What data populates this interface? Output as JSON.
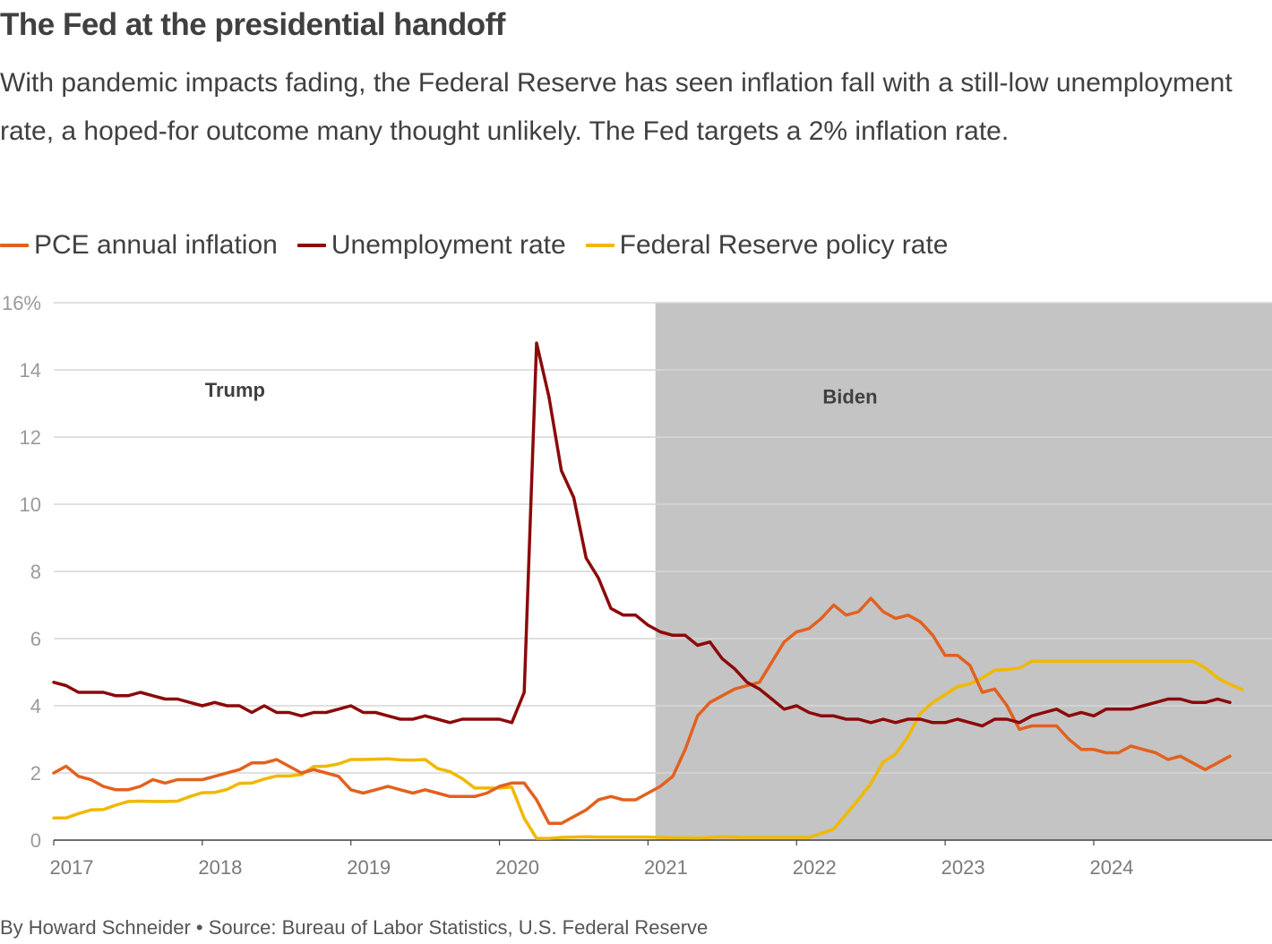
{
  "title": "The Fed at the presidential handoff",
  "subtitle": "With pandemic impacts fading, the Federal Reserve has seen inflation fall with a still-low unemployment rate, a hoped-for outcome many thought unlikely. The Fed targets a 2% inflation rate.",
  "footer": "By Howard Schneider • Source: Bureau of Labor Statistics, U.S. Federal Reserve",
  "legend": [
    {
      "label": "PCE annual inflation",
      "color": "#e2611f"
    },
    {
      "label": "Unemployment rate",
      "color": "#8b0a0a"
    },
    {
      "label": "Federal Reserve policy rate",
      "color": "#f0b800"
    }
  ],
  "chart_data": {
    "type": "line",
    "x_start": "2017-01",
    "x_unit": "month",
    "xlim": [
      2017.0,
      2025.2
    ],
    "ylim": [
      0,
      16
    ],
    "y_ticks": [
      0,
      2,
      4,
      6,
      8,
      10,
      12,
      14,
      16
    ],
    "y_tick_labels": [
      "0",
      "2",
      "4",
      "6",
      "8",
      "10",
      "12",
      "14",
      "16%"
    ],
    "x_ticks": [
      2017,
      2018,
      2019,
      2020,
      2021,
      2022,
      2023,
      2024
    ],
    "x_tick_labels": [
      "2017",
      "2018",
      "2019",
      "2020",
      "2021",
      "2022",
      "2023",
      "2024"
    ],
    "shaded_region": {
      "start": 2021.05,
      "end": 2025.2,
      "color": "#c4c4c4",
      "label": "Biden"
    },
    "annotations": [
      {
        "text": "Trump",
        "x": 2018.22,
        "y": 13.2
      },
      {
        "text": "Biden",
        "x": 2022.36,
        "y": 13.0
      }
    ],
    "series": [
      {
        "name": "PCE annual inflation",
        "color": "#e2611f",
        "values": [
          2.0,
          2.2,
          1.9,
          1.8,
          1.6,
          1.5,
          1.5,
          1.6,
          1.8,
          1.7,
          1.8,
          1.8,
          1.8,
          1.9,
          2.0,
          2.1,
          2.3,
          2.3,
          2.4,
          2.2,
          2.0,
          2.1,
          2.0,
          1.9,
          1.5,
          1.4,
          1.5,
          1.6,
          1.5,
          1.4,
          1.5,
          1.4,
          1.3,
          1.3,
          1.3,
          1.4,
          1.6,
          1.7,
          1.7,
          1.2,
          0.5,
          0.5,
          0.7,
          0.9,
          1.2,
          1.3,
          1.2,
          1.2,
          1.4,
          1.6,
          1.9,
          2.7,
          3.7,
          4.1,
          4.3,
          4.5,
          4.6,
          4.7,
          5.3,
          5.9,
          6.2,
          6.3,
          6.6,
          7.0,
          6.7,
          6.8,
          7.2,
          6.8,
          6.6,
          6.7,
          6.5,
          6.1,
          5.5,
          5.5,
          5.2,
          4.4,
          4.5,
          4.0,
          3.3,
          3.4,
          3.4,
          3.4,
          3.0,
          2.7,
          2.7,
          2.6,
          2.6,
          2.8,
          2.7,
          2.6,
          2.4,
          2.5,
          2.3,
          2.1,
          2.3,
          2.5
        ]
      },
      {
        "name": "Unemployment rate",
        "color": "#8b0a0a",
        "values": [
          4.7,
          4.6,
          4.4,
          4.4,
          4.4,
          4.3,
          4.3,
          4.4,
          4.3,
          4.2,
          4.2,
          4.1,
          4.0,
          4.1,
          4.0,
          4.0,
          3.8,
          4.0,
          3.8,
          3.8,
          3.7,
          3.8,
          3.8,
          3.9,
          4.0,
          3.8,
          3.8,
          3.7,
          3.6,
          3.6,
          3.7,
          3.6,
          3.5,
          3.6,
          3.6,
          3.6,
          3.6,
          3.5,
          4.4,
          14.8,
          13.2,
          11.0,
          10.2,
          8.4,
          7.8,
          6.9,
          6.7,
          6.7,
          6.4,
          6.2,
          6.1,
          6.1,
          5.8,
          5.9,
          5.4,
          5.1,
          4.7,
          4.5,
          4.2,
          3.9,
          4.0,
          3.8,
          3.7,
          3.7,
          3.6,
          3.6,
          3.5,
          3.6,
          3.5,
          3.6,
          3.6,
          3.5,
          3.5,
          3.6,
          3.5,
          3.4,
          3.6,
          3.6,
          3.5,
          3.7,
          3.8,
          3.9,
          3.7,
          3.8,
          3.7,
          3.9,
          3.9,
          3.9,
          4.0,
          4.1,
          4.2,
          4.2,
          4.1,
          4.1,
          4.2,
          4.1
        ]
      },
      {
        "name": "Federal Reserve policy rate",
        "color": "#f0b800",
        "values": [
          0.66,
          0.66,
          0.79,
          0.9,
          0.91,
          1.04,
          1.15,
          1.16,
          1.15,
          1.15,
          1.16,
          1.3,
          1.41,
          1.42,
          1.51,
          1.69,
          1.7,
          1.82,
          1.91,
          1.91,
          1.95,
          2.19,
          2.2,
          2.27,
          2.4,
          2.4,
          2.41,
          2.42,
          2.39,
          2.38,
          2.4,
          2.13,
          2.04,
          1.83,
          1.55,
          1.55,
          1.55,
          1.58,
          0.65,
          0.05,
          0.05,
          0.08,
          0.09,
          0.1,
          0.09,
          0.09,
          0.09,
          0.09,
          0.09,
          0.08,
          0.07,
          0.07,
          0.06,
          0.08,
          0.1,
          0.09,
          0.08,
          0.08,
          0.08,
          0.08,
          0.08,
          0.08,
          0.2,
          0.33,
          0.77,
          1.21,
          1.68,
          2.33,
          2.56,
          3.08,
          3.78,
          4.1,
          4.33,
          4.57,
          4.65,
          4.83,
          5.06,
          5.08,
          5.12,
          5.33,
          5.33,
          5.33,
          5.33,
          5.33,
          5.33,
          5.33,
          5.33,
          5.33,
          5.33,
          5.33,
          5.33,
          5.33,
          5.33,
          5.13,
          4.83,
          4.64,
          4.48
        ]
      }
    ]
  }
}
